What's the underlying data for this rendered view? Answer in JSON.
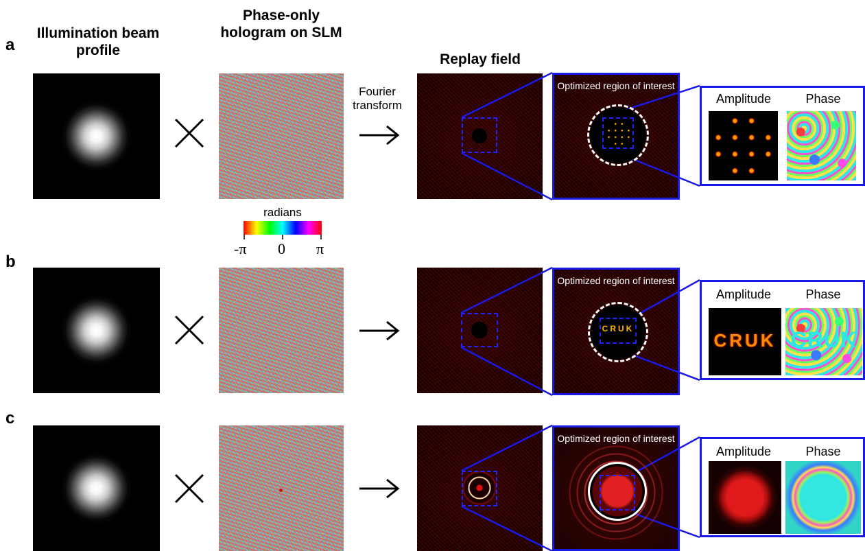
{
  "headers": {
    "illumination": "Illumination beam profile",
    "hologram": "Phase-only hologram on SLM",
    "replay": "Replay field"
  },
  "rows": [
    {
      "label": "a",
      "sub_amp": "Amplitude",
      "sub_phase": "Phase",
      "roi": "Optimized region of interest",
      "pattern": "dot-array"
    },
    {
      "label": "b",
      "sub_amp": "Amplitude",
      "sub_phase": "Phase",
      "roi": "Optimized region of interest",
      "pattern": "text",
      "pattern_text": "CRUK"
    },
    {
      "label": "c",
      "sub_amp": "Amplitude",
      "sub_phase": "Phase",
      "roi": "Optimized region of interest",
      "pattern": "disk"
    }
  ],
  "fourier_label": "Fourier transform",
  "colorbar": {
    "title": "radians",
    "ticks": [
      "-π",
      "0",
      "π"
    ],
    "colors": [
      "#ff0000",
      "#ffff00",
      "#00ff00",
      "#00ffff",
      "#0000ff",
      "#ff00ff",
      "#ff0000"
    ]
  },
  "colors": {
    "outline_blue": "#1a1ae6",
    "replay_red": "#cc1010"
  }
}
